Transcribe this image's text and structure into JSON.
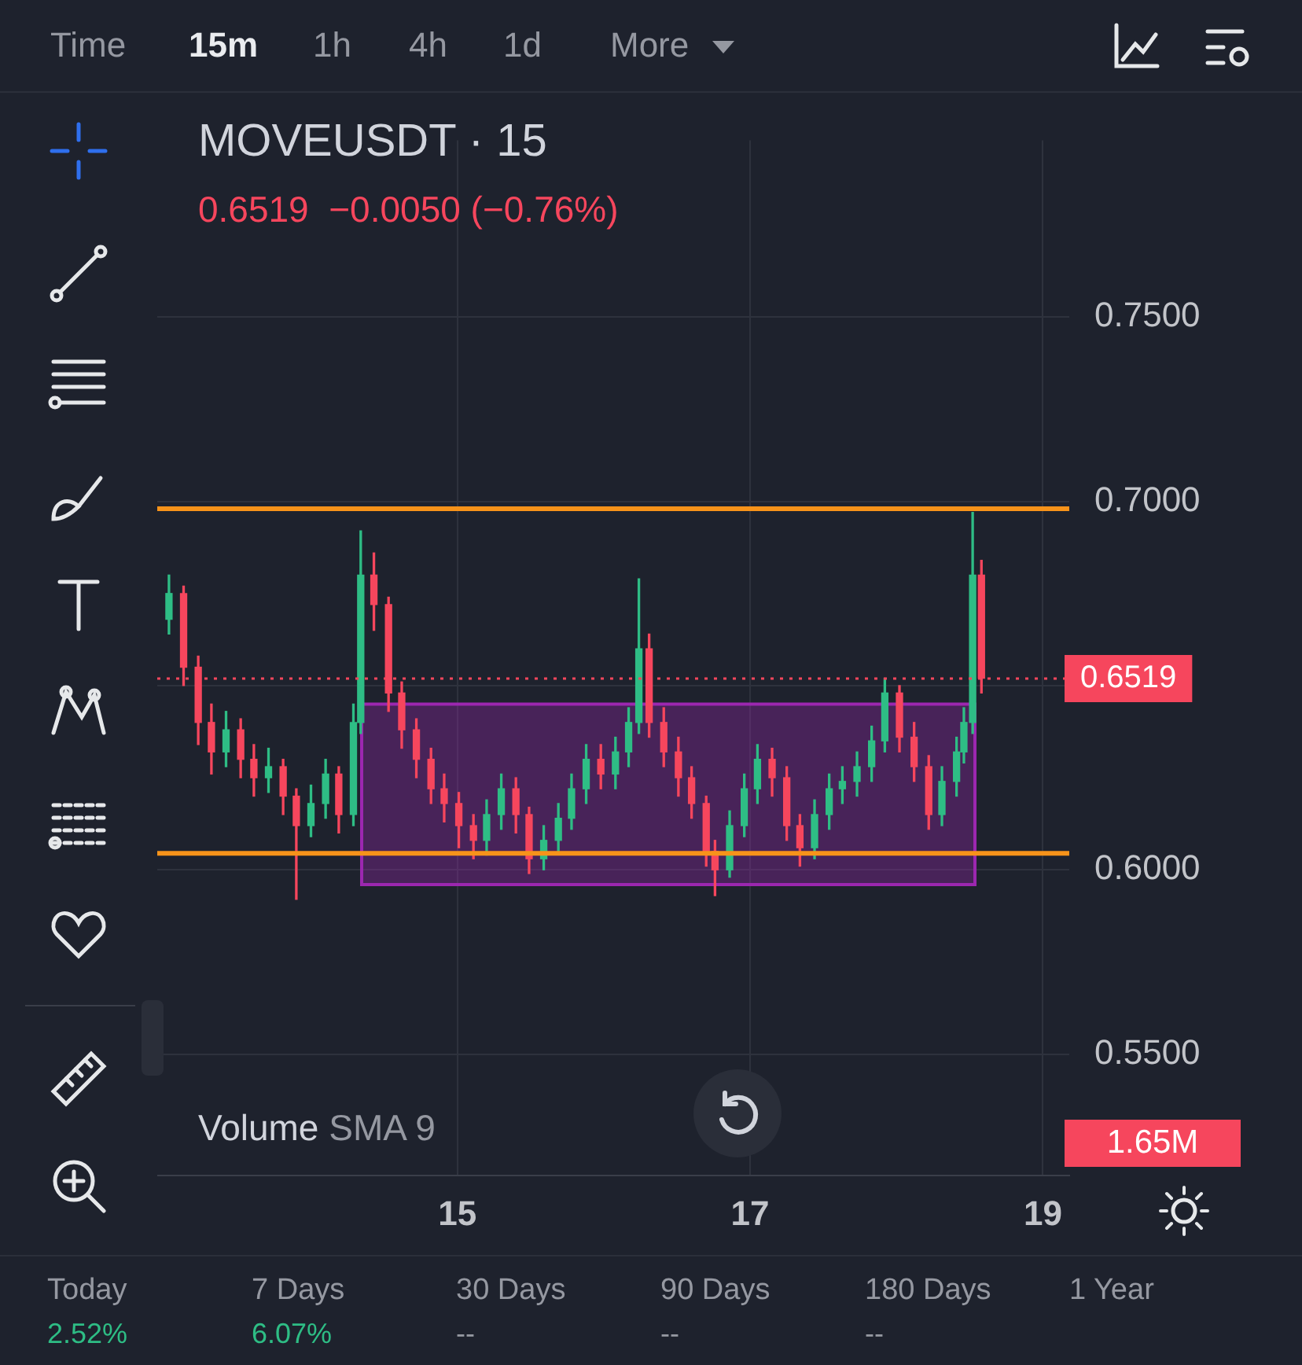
{
  "chart_data": {
    "type": "candlestick",
    "title": "MOVEUSDT · 15",
    "subtitle": "0.6519  −0.0050 (−0.76%)",
    "x": [
      13.03,
      13.13,
      13.23,
      13.32,
      13.42,
      13.52,
      13.61,
      13.71,
      13.81,
      13.9,
      14.0,
      14.1,
      14.19,
      14.29,
      14.34,
      14.43,
      14.53,
      14.62,
      14.72,
      14.82,
      14.91,
      15.01,
      15.11,
      15.2,
      15.3,
      15.4,
      15.49,
      15.59,
      15.69,
      15.78,
      15.88,
      15.98,
      16.08,
      16.17,
      16.24,
      16.31,
      16.41,
      16.51,
      16.6,
      16.7,
      16.76,
      16.86,
      16.96,
      17.05,
      17.15,
      17.25,
      17.34,
      17.44,
      17.54,
      17.63,
      17.73,
      17.83,
      17.92,
      18.02,
      18.12,
      18.22,
      18.31,
      18.41,
      18.46,
      18.52,
      18.58
    ],
    "ohlc": [
      [
        0.668,
        0.68,
        0.664,
        0.675
      ],
      [
        0.675,
        0.677,
        0.65,
        0.655
      ],
      [
        0.655,
        0.658,
        0.634,
        0.64
      ],
      [
        0.64,
        0.645,
        0.626,
        0.632
      ],
      [
        0.632,
        0.643,
        0.628,
        0.638
      ],
      [
        0.638,
        0.641,
        0.625,
        0.63
      ],
      [
        0.63,
        0.634,
        0.62,
        0.625
      ],
      [
        0.625,
        0.633,
        0.621,
        0.628
      ],
      [
        0.628,
        0.63,
        0.615,
        0.62
      ],
      [
        0.62,
        0.622,
        0.592,
        0.612
      ],
      [
        0.612,
        0.623,
        0.609,
        0.618
      ],
      [
        0.618,
        0.63,
        0.614,
        0.626
      ],
      [
        0.626,
        0.628,
        0.61,
        0.615
      ],
      [
        0.615,
        0.645,
        0.612,
        0.64
      ],
      [
        0.64,
        0.692,
        0.637,
        0.68
      ],
      [
        0.68,
        0.686,
        0.665,
        0.672
      ],
      [
        0.672,
        0.674,
        0.643,
        0.648
      ],
      [
        0.648,
        0.651,
        0.633,
        0.638
      ],
      [
        0.638,
        0.641,
        0.625,
        0.63
      ],
      [
        0.63,
        0.633,
        0.618,
        0.622
      ],
      [
        0.622,
        0.626,
        0.613,
        0.618
      ],
      [
        0.618,
        0.621,
        0.606,
        0.612
      ],
      [
        0.612,
        0.615,
        0.603,
        0.608
      ],
      [
        0.608,
        0.619,
        0.604,
        0.615
      ],
      [
        0.615,
        0.626,
        0.611,
        0.622
      ],
      [
        0.622,
        0.625,
        0.61,
        0.615
      ],
      [
        0.615,
        0.617,
        0.599,
        0.603
      ],
      [
        0.603,
        0.612,
        0.6,
        0.608
      ],
      [
        0.608,
        0.618,
        0.605,
        0.614
      ],
      [
        0.614,
        0.626,
        0.611,
        0.622
      ],
      [
        0.622,
        0.634,
        0.618,
        0.63
      ],
      [
        0.63,
        0.634,
        0.622,
        0.626
      ],
      [
        0.626,
        0.636,
        0.622,
        0.632
      ],
      [
        0.632,
        0.644,
        0.628,
        0.64
      ],
      [
        0.64,
        0.679,
        0.637,
        0.66
      ],
      [
        0.66,
        0.664,
        0.636,
        0.64
      ],
      [
        0.64,
        0.644,
        0.628,
        0.632
      ],
      [
        0.632,
        0.636,
        0.62,
        0.625
      ],
      [
        0.625,
        0.628,
        0.614,
        0.618
      ],
      [
        0.618,
        0.62,
        0.601,
        0.605
      ],
      [
        0.605,
        0.608,
        0.593,
        0.6
      ],
      [
        0.6,
        0.616,
        0.598,
        0.612
      ],
      [
        0.612,
        0.626,
        0.609,
        0.622
      ],
      [
        0.622,
        0.634,
        0.618,
        0.63
      ],
      [
        0.63,
        0.633,
        0.62,
        0.625
      ],
      [
        0.625,
        0.628,
        0.608,
        0.612
      ],
      [
        0.612,
        0.615,
        0.601,
        0.606
      ],
      [
        0.606,
        0.619,
        0.603,
        0.615
      ],
      [
        0.615,
        0.626,
        0.611,
        0.622
      ],
      [
        0.622,
        0.628,
        0.618,
        0.624
      ],
      [
        0.624,
        0.632,
        0.62,
        0.628
      ],
      [
        0.628,
        0.639,
        0.624,
        0.635
      ],
      [
        0.635,
        0.652,
        0.632,
        0.648
      ],
      [
        0.648,
        0.65,
        0.632,
        0.636
      ],
      [
        0.636,
        0.64,
        0.624,
        0.628
      ],
      [
        0.628,
        0.631,
        0.611,
        0.615
      ],
      [
        0.615,
        0.628,
        0.612,
        0.624
      ],
      [
        0.624,
        0.636,
        0.62,
        0.632
      ],
      [
        0.632,
        0.644,
        0.629,
        0.64
      ],
      [
        0.64,
        0.697,
        0.637,
        0.68
      ],
      [
        0.68,
        0.684,
        0.648,
        0.652
      ]
    ],
    "colors": [
      "#2ebd85",
      "#f6465d",
      "#f6465d",
      "#f6465d",
      "#2ebd85",
      "#f6465d",
      "#f6465d",
      "#2ebd85",
      "#f6465d",
      "#f6465d",
      "#2ebd85",
      "#2ebd85",
      "#f6465d",
      "#2ebd85",
      "#2ebd85",
      "#f6465d",
      "#f6465d",
      "#f6465d",
      "#f6465d",
      "#f6465d",
      "#f6465d",
      "#f6465d",
      "#f6465d",
      "#2ebd85",
      "#2ebd85",
      "#f6465d",
      "#f6465d",
      "#2ebd85",
      "#2ebd85",
      "#2ebd85",
      "#2ebd85",
      "#f6465d",
      "#2ebd85",
      "#2ebd85",
      "#2ebd85",
      "#f6465d",
      "#f6465d",
      "#f6465d",
      "#f6465d",
      "#f6465d",
      "#f6465d",
      "#2ebd85",
      "#2ebd85",
      "#2ebd85",
      "#f6465d",
      "#f6465d",
      "#f6465d",
      "#2ebd85",
      "#2ebd85",
      "#2ebd85",
      "#2ebd85",
      "#2ebd85",
      "#2ebd85",
      "#f6465d",
      "#f6465d",
      "#f6465d",
      "#2ebd85",
      "#2ebd85",
      "#2ebd85",
      "#2ebd85",
      "#f6465d"
    ],
    "xlim": [
      12.95,
      19.18
    ],
    "xticks": [
      15,
      17,
      19
    ],
    "ylim": [
      0.517,
      0.798
    ],
    "yticks": [
      {
        "value": 0.55,
        "label": "0.5500"
      },
      {
        "value": 0.6,
        "label": "0.6000"
      },
      {
        "value": 0.65,
        "label": null
      },
      {
        "value": 0.7,
        "label": "0.7000"
      },
      {
        "value": 0.75,
        "label": "0.7500"
      }
    ],
    "grid": true,
    "ref_lines": [
      {
        "axis": "y",
        "value": 0.698,
        "color": "#f7931a"
      },
      {
        "axis": "y",
        "value": 0.6045,
        "color": "#f7931a"
      },
      {
        "axis": "y",
        "value": 0.6519,
        "label": "0.6519",
        "color": "#f6465d",
        "line_style": "dotted"
      }
    ],
    "bands": [
      {
        "axis": "y",
        "from": 0.596,
        "to": 0.645,
        "color": "#9c27b0"
      }
    ],
    "annotations": [
      "Time",
      "15m",
      "1h",
      "4h",
      "1d",
      "More",
      "Volume",
      "SMA 9",
      "1.65M",
      "Today",
      "2.52%",
      "7 Days",
      "6.07%",
      "30 Days",
      "--",
      "90 Days",
      "--",
      "180 Days",
      "--",
      "1 Year"
    ]
  }
}
